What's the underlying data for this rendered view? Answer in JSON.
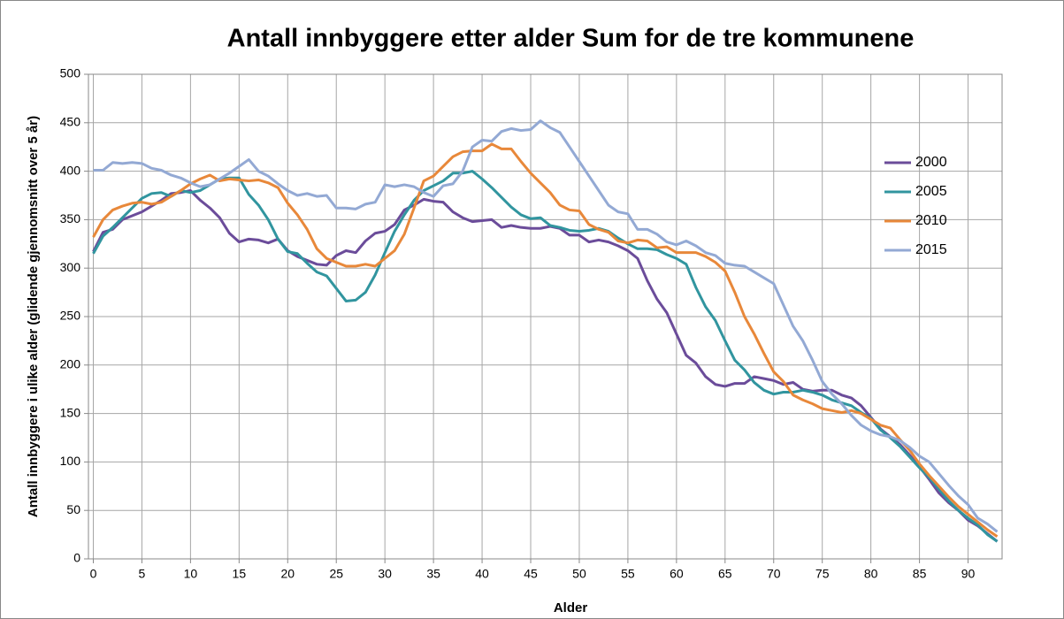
{
  "chart_data": {
    "type": "line",
    "title": "Antall innbyggere etter alder Sum for de tre kommunene",
    "xlabel": "Alder",
    "ylabel": "Antall innbyggere i ulike alder (glidende gjennomsnitt over 5 år)",
    "x": [
      0,
      1,
      2,
      3,
      4,
      5,
      6,
      7,
      8,
      9,
      10,
      11,
      12,
      13,
      14,
      15,
      16,
      17,
      18,
      19,
      20,
      21,
      22,
      23,
      24,
      25,
      26,
      27,
      28,
      29,
      30,
      31,
      32,
      33,
      34,
      35,
      36,
      37,
      38,
      39,
      40,
      41,
      42,
      43,
      44,
      45,
      46,
      47,
      48,
      49,
      50,
      51,
      52,
      53,
      54,
      55,
      56,
      57,
      58,
      59,
      60,
      61,
      62,
      63,
      64,
      65,
      66,
      67,
      68,
      69,
      70,
      71,
      72,
      73,
      74,
      75,
      76,
      77,
      78,
      79,
      80,
      81,
      82,
      83,
      84,
      85,
      86,
      87,
      88,
      89,
      90,
      91,
      92,
      93
    ],
    "xlim": [
      -0.5,
      93.5
    ],
    "xticks": [
      0,
      5,
      10,
      15,
      20,
      25,
      30,
      35,
      40,
      45,
      50,
      55,
      60,
      65,
      70,
      75,
      80,
      85,
      90
    ],
    "ylim": [
      0,
      500
    ],
    "yticks": [
      0,
      50,
      100,
      150,
      200,
      250,
      300,
      350,
      400,
      450,
      500
    ],
    "grid": true,
    "legend": "right",
    "series": [
      {
        "name": "2000",
        "color": "#6b4c9a",
        "values": [
          317,
          337,
          340,
          350,
          354,
          358,
          364,
          370,
          377,
          378,
          380,
          370,
          362,
          352,
          336,
          327,
          330,
          329,
          326,
          330,
          318,
          312,
          308,
          304,
          303,
          313,
          318,
          316,
          328,
          336,
          338,
          345,
          360,
          365,
          371,
          369,
          368,
          358,
          352,
          348,
          349,
          350,
          342,
          344,
          342,
          341,
          341,
          343,
          341,
          334,
          334,
          327,
          329,
          327,
          323,
          318,
          310,
          287,
          268,
          254,
          232,
          210,
          202,
          188,
          180,
          178,
          181,
          181,
          188,
          186,
          184,
          180,
          182,
          175,
          173,
          174,
          174,
          169,
          166,
          158,
          146,
          134,
          126,
          118,
          107,
          95,
          82,
          68,
          58,
          50,
          40,
          34,
          26,
          18
        ]
      },
      {
        "name": "2005",
        "color": "#31959f",
        "values": [
          315,
          333,
          342,
          352,
          362,
          372,
          377,
          378,
          374,
          380,
          378,
          380,
          386,
          392,
          393,
          393,
          376,
          365,
          350,
          330,
          317,
          315,
          305,
          296,
          292,
          279,
          266,
          267,
          275,
          293,
          316,
          338,
          355,
          370,
          380,
          385,
          390,
          398,
          398,
          400,
          392,
          383,
          373,
          363,
          355,
          351,
          352,
          344,
          342,
          339,
          338,
          339,
          341,
          338,
          331,
          325,
          320,
          320,
          319,
          314,
          310,
          304,
          280,
          260,
          246,
          225,
          205,
          195,
          182,
          174,
          170,
          172,
          172,
          174,
          172,
          169,
          164,
          161,
          158,
          151,
          145,
          133,
          125,
          116,
          105,
          94,
          84,
          72,
          60,
          50,
          42,
          35,
          25,
          18
        ]
      },
      {
        "name": "2010",
        "color": "#e8883a",
        "values": [
          332,
          350,
          360,
          364,
          367,
          368,
          366,
          368,
          374,
          380,
          387,
          392,
          396,
          390,
          392,
          391,
          390,
          391,
          388,
          383,
          367,
          355,
          340,
          320,
          310,
          306,
          302,
          302,
          304,
          302,
          310,
          318,
          335,
          362,
          390,
          395,
          405,
          415,
          420,
          421,
          421,
          428,
          423,
          423,
          410,
          398,
          388,
          378,
          365,
          360,
          359,
          345,
          340,
          337,
          328,
          326,
          329,
          328,
          321,
          322,
          316,
          316,
          316,
          312,
          306,
          297,
          275,
          250,
          232,
          212,
          193,
          183,
          169,
          164,
          160,
          155,
          153,
          151,
          153,
          150,
          144,
          138,
          135,
          123,
          112,
          98,
          86,
          75,
          64,
          54,
          46,
          38,
          30,
          23
        ]
      },
      {
        "name": "2015",
        "color": "#93a9d4",
        "values": [
          401,
          401,
          409,
          408,
          409,
          408,
          403,
          401,
          396,
          393,
          388,
          384,
          386,
          392,
          398,
          405,
          412,
          400,
          395,
          387,
          380,
          375,
          377,
          374,
          375,
          362,
          362,
          361,
          366,
          368,
          386,
          384,
          386,
          384,
          378,
          374,
          385,
          387,
          400,
          425,
          432,
          431,
          441,
          444,
          442,
          443,
          452,
          445,
          440,
          425,
          410,
          395,
          380,
          365,
          358,
          356,
          340,
          340,
          335,
          327,
          324,
          328,
          323,
          316,
          313,
          305,
          303,
          302,
          296,
          290,
          284,
          262,
          240,
          225,
          205,
          183,
          170,
          160,
          148,
          138,
          132,
          128,
          126,
          122,
          115,
          106,
          100,
          88,
          76,
          65,
          56,
          42,
          36,
          28
        ]
      }
    ]
  }
}
